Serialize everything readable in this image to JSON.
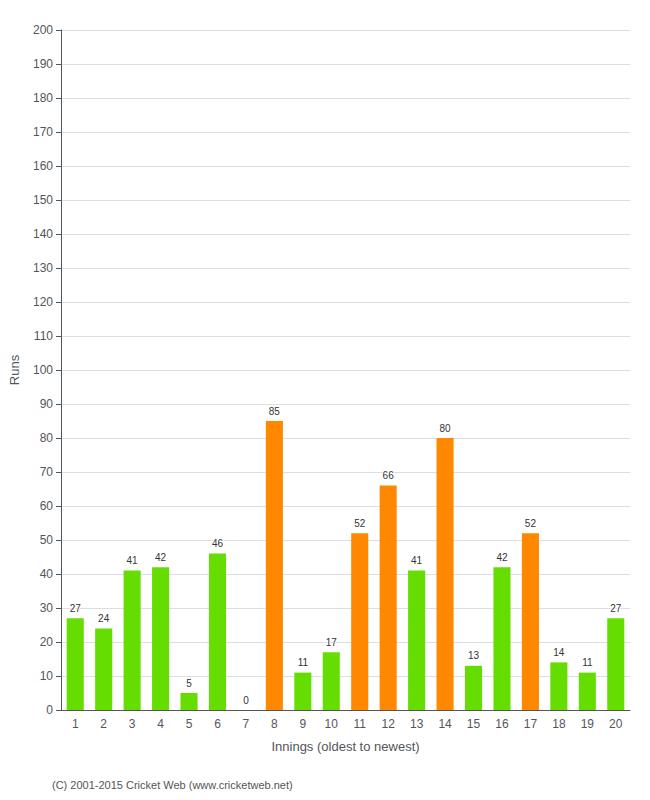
{
  "chart_data": {
    "type": "bar",
    "xlabel": "Innings (oldest to newest)",
    "ylabel": "Runs",
    "categories": [
      1,
      2,
      3,
      4,
      5,
      6,
      7,
      8,
      9,
      10,
      11,
      12,
      13,
      14,
      15,
      16,
      17,
      18,
      19,
      20
    ],
    "values": [
      27,
      24,
      41,
      42,
      5,
      46,
      0,
      85,
      11,
      17,
      52,
      66,
      41,
      80,
      13,
      42,
      52,
      14,
      11,
      27
    ],
    "colors": [
      "#66dd00",
      "#66dd00",
      "#66dd00",
      "#66dd00",
      "#66dd00",
      "#66dd00",
      "#66dd00",
      "#ff8800",
      "#66dd00",
      "#66dd00",
      "#ff8800",
      "#ff8800",
      "#66dd00",
      "#ff8800",
      "#66dd00",
      "#66dd00",
      "#ff8800",
      "#66dd00",
      "#66dd00",
      "#66dd00"
    ],
    "ylim": [
      0,
      200
    ],
    "yticks": [
      0,
      10,
      20,
      30,
      40,
      50,
      60,
      70,
      80,
      90,
      100,
      110,
      120,
      130,
      140,
      150,
      160,
      170,
      180,
      190,
      200
    ],
    "grid": true,
    "data_labels": true,
    "annotation": "(C) 2001-2015 Cricket Web (www.cricketweb.net)"
  }
}
